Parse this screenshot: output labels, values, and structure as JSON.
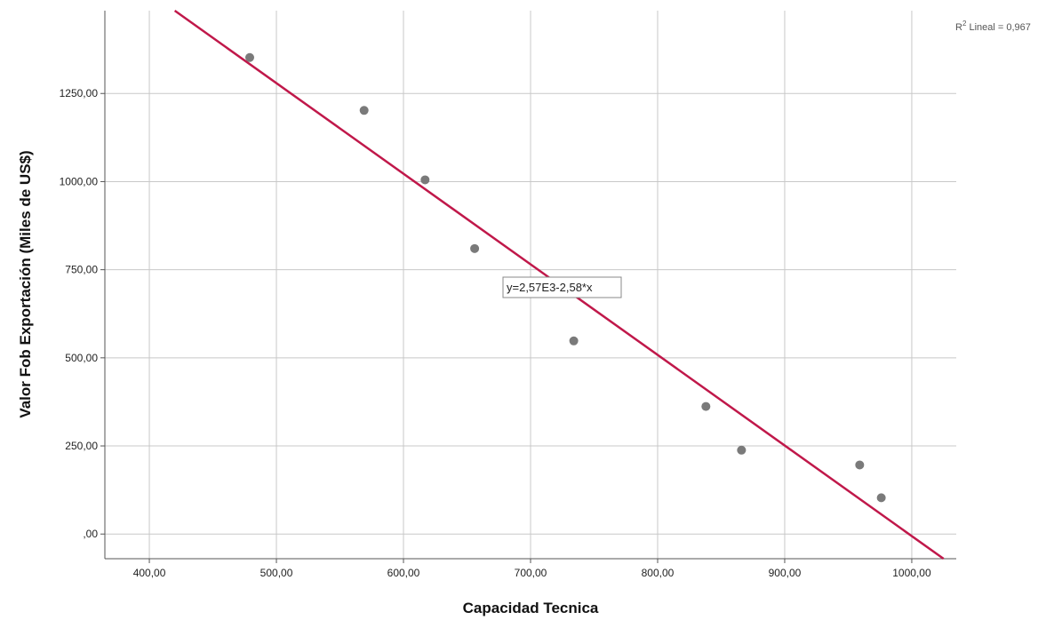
{
  "chart_data": {
    "type": "scatter",
    "xlabel": "Capacidad Tecnica",
    "ylabel": "Valor  Fob Exportación (Miles de US$)",
    "xlim": [
      365,
      1035
    ],
    "ylim": [
      -70,
      1485
    ],
    "x_ticks": [
      400,
      500,
      600,
      700,
      800,
      900,
      1000
    ],
    "x_tick_labels": [
      "400,00",
      "500,00",
      "600,00",
      "700,00",
      "800,00",
      "900,00",
      "1000,00"
    ],
    "y_ticks": [
      0,
      250,
      500,
      750,
      1000,
      1250
    ],
    "y_tick_labels": [
      ",00",
      "250,00",
      "500,00",
      "750,00",
      "1000,00",
      "1250,00"
    ],
    "grid": true,
    "points": [
      {
        "x": 479,
        "y": 1352
      },
      {
        "x": 569,
        "y": 1202
      },
      {
        "x": 617,
        "y": 1005
      },
      {
        "x": 656,
        "y": 810
      },
      {
        "x": 734,
        "y": 548
      },
      {
        "x": 838,
        "y": 362
      },
      {
        "x": 866,
        "y": 238
      },
      {
        "x": 959,
        "y": 196
      },
      {
        "x": 976,
        "y": 103
      }
    ],
    "fit_line": {
      "equation_label": "y=2,57E3-2,58*x",
      "x_range": [
        420,
        1025
      ],
      "y_at_x_start": 1485,
      "y_at_x_end": -70
    },
    "r2_label": {
      "prefix": "R",
      "superscript": "2",
      "suffix": " Lineal = 0,967"
    },
    "colors": {
      "points": "#7a7a7a",
      "fit_line": "#c0184a",
      "grid": "#c8c8c8",
      "axis": "#555555"
    }
  }
}
